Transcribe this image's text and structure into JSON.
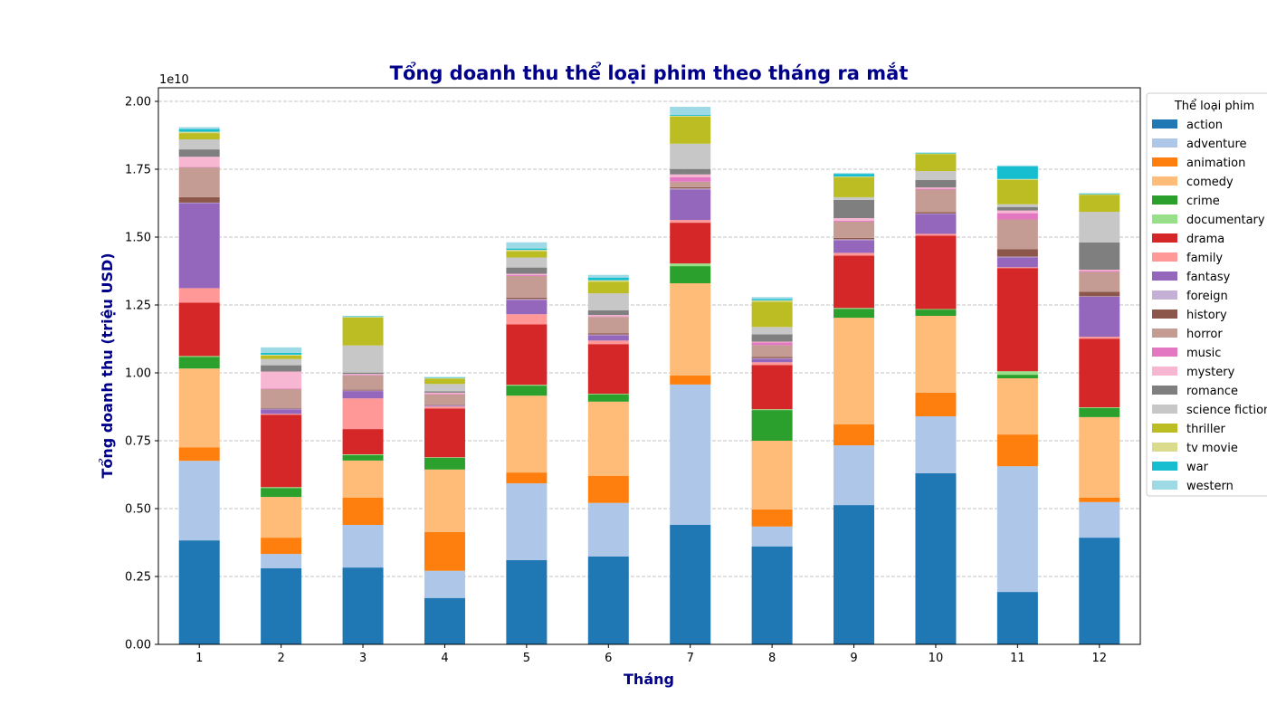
{
  "chart_data": {
    "type": "bar",
    "stacked": true,
    "title": "Tổng doanh thu thể loại phim theo tháng ra mắt",
    "xlabel": "Tháng",
    "ylabel": "Tổng doanh thu (triệu USD)",
    "y_offset_text": "1e10",
    "y_scale": 10000000000,
    "ylim": [
      0,
      2.05
    ],
    "yticks": [
      "0.00",
      "0.25",
      "0.50",
      "0.75",
      "1.00",
      "1.25",
      "1.50",
      "1.75",
      "2.00"
    ],
    "grid": "horizontal dashed",
    "legend_title": "Thể loại phim",
    "legend_position": "right",
    "categories": [
      "1",
      "2",
      "3",
      "4",
      "5",
      "6",
      "7",
      "8",
      "9",
      "10",
      "11",
      "12"
    ],
    "series": [
      {
        "name": "action",
        "color": "#1f77b4",
        "values": [
          0.383,
          0.28,
          0.283,
          0.171,
          0.31,
          0.324,
          0.44,
          0.361,
          0.513,
          0.63,
          0.193,
          0.393
        ]
      },
      {
        "name": "adventure",
        "color": "#aec7e8",
        "values": [
          0.293,
          0.053,
          0.157,
          0.1,
          0.283,
          0.197,
          0.517,
          0.073,
          0.22,
          0.21,
          0.463,
          0.131
        ]
      },
      {
        "name": "animation",
        "color": "#ff7f0e",
        "values": [
          0.05,
          0.06,
          0.1,
          0.143,
          0.04,
          0.1,
          0.033,
          0.063,
          0.077,
          0.087,
          0.117,
          0.016
        ]
      },
      {
        "name": "comedy",
        "color": "#ffbb78",
        "values": [
          0.29,
          0.15,
          0.137,
          0.23,
          0.283,
          0.273,
          0.34,
          0.253,
          0.393,
          0.283,
          0.207,
          0.297
        ]
      },
      {
        "name": "crime",
        "color": "#2ca02c",
        "values": [
          0.043,
          0.033,
          0.02,
          0.043,
          0.037,
          0.027,
          0.063,
          0.113,
          0.033,
          0.023,
          0.013,
          0.033
        ]
      },
      {
        "name": "documentary",
        "color": "#98df8a",
        "values": [
          0.003,
          0.003,
          0.003,
          0.002,
          0.003,
          0.002,
          0.01,
          0.003,
          0.003,
          0.002,
          0.013,
          0.003
        ]
      },
      {
        "name": "drama",
        "color": "#d62728",
        "values": [
          0.197,
          0.267,
          0.093,
          0.18,
          0.223,
          0.183,
          0.15,
          0.163,
          0.193,
          0.27,
          0.38,
          0.253
        ]
      },
      {
        "name": "family",
        "color": "#ff9896",
        "values": [
          0.053,
          0.003,
          0.113,
          0.007,
          0.037,
          0.013,
          0.01,
          0.01,
          0.01,
          0.007,
          0.003,
          0.007
        ]
      },
      {
        "name": "fantasy",
        "color": "#9467bd",
        "values": [
          0.313,
          0.017,
          0.027,
          0.003,
          0.053,
          0.02,
          0.113,
          0.013,
          0.047,
          0.073,
          0.037,
          0.147
        ]
      },
      {
        "name": "foreign",
        "color": "#c5b0d5",
        "values": [
          0.002,
          0.002,
          0.002,
          0.002,
          0.003,
          0.002,
          0.003,
          0.002,
          0.003,
          0.002,
          0.002,
          0.002
        ]
      },
      {
        "name": "history",
        "color": "#8c564b",
        "values": [
          0.02,
          0.002,
          0.003,
          0.002,
          0.005,
          0.005,
          0.005,
          0.005,
          0.005,
          0.005,
          0.027,
          0.017
        ]
      },
      {
        "name": "horror",
        "color": "#c49c94",
        "values": [
          0.11,
          0.07,
          0.053,
          0.037,
          0.08,
          0.06,
          0.02,
          0.043,
          0.06,
          0.083,
          0.11,
          0.073
        ]
      },
      {
        "name": "music",
        "color": "#e377c2",
        "values": [
          0.002,
          0.002,
          0.002,
          0.002,
          0.003,
          0.002,
          0.017,
          0.01,
          0.003,
          0.003,
          0.023,
          0.003
        ]
      },
      {
        "name": "mystery",
        "color": "#f7b6d2",
        "values": [
          0.037,
          0.063,
          0.003,
          0.005,
          0.005,
          0.005,
          0.01,
          0.003,
          0.01,
          0.005,
          0.01,
          0.005
        ]
      },
      {
        "name": "romance",
        "color": "#7f7f7f",
        "values": [
          0.027,
          0.023,
          0.005,
          0.005,
          0.023,
          0.017,
          0.02,
          0.027,
          0.067,
          0.027,
          0.013,
          0.1
        ]
      },
      {
        "name": "science fiction",
        "color": "#c7c7c7",
        "values": [
          0.037,
          0.023,
          0.1,
          0.027,
          0.037,
          0.063,
          0.093,
          0.027,
          0.01,
          0.033,
          0.01,
          0.113
        ]
      },
      {
        "name": "thriller",
        "color": "#bcbd22",
        "values": [
          0.023,
          0.013,
          0.103,
          0.02,
          0.023,
          0.043,
          0.1,
          0.093,
          0.073,
          0.063,
          0.09,
          0.063
        ]
      },
      {
        "name": "tv movie",
        "color": "#dbdb8d",
        "values": [
          0.005,
          0.003,
          0.002,
          0.002,
          0.005,
          0.005,
          0.003,
          0.005,
          0.003,
          0.002,
          0.003,
          0.002
        ]
      },
      {
        "name": "war",
        "color": "#17becf",
        "values": [
          0.01,
          0.007,
          0.002,
          0.002,
          0.005,
          0.01,
          0.003,
          0.005,
          0.01,
          0.002,
          0.047,
          0.002
        ]
      },
      {
        "name": "western",
        "color": "#9edae5",
        "values": [
          0.007,
          0.02,
          0.002,
          0.002,
          0.023,
          0.01,
          0.03,
          0.007,
          0.003,
          0.002,
          0.003,
          0.002
        ]
      }
    ]
  }
}
